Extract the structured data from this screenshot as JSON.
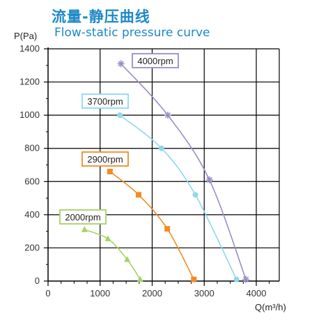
{
  "header": {
    "title_cn": "流量-静压曲线",
    "title_en": "Flow-static pressure curve"
  },
  "chart_data": {
    "type": "line",
    "xlabel": "Q(m³/h)",
    "ylabel": "P(Pa)",
    "xlim": [
      0,
      4400
    ],
    "ylim": [
      0,
      1400
    ],
    "x_ticks": [
      "0",
      "1000",
      "2000",
      "3000",
      "4000"
    ],
    "y_ticks": [
      "0",
      "200",
      "400",
      "600",
      "800",
      "1000",
      "1200",
      "1400"
    ],
    "grid": true,
    "series": [
      {
        "name": "4000rpm",
        "color": "#9b8cc8",
        "marker": "asterisk",
        "x": [
          1400,
          2300,
          3100,
          3800
        ],
        "y": [
          1310,
          1000,
          610,
          10
        ]
      },
      {
        "name": "3700rpm",
        "color": "#8fd8ee",
        "marker": "circle",
        "x": [
          1380,
          2180,
          2830,
          3620
        ],
        "y": [
          1000,
          800,
          520,
          10
        ]
      },
      {
        "name": "2900rpm",
        "color": "#f08c28",
        "marker": "square",
        "x": [
          1190,
          1740,
          2290,
          2800
        ],
        "y": [
          660,
          520,
          315,
          10
        ]
      },
      {
        "name": "2000rpm",
        "color": "#a6d264",
        "marker": "triangle",
        "x": [
          700,
          1150,
          1520,
          1770
        ],
        "y": [
          310,
          255,
          130,
          10
        ]
      }
    ]
  }
}
